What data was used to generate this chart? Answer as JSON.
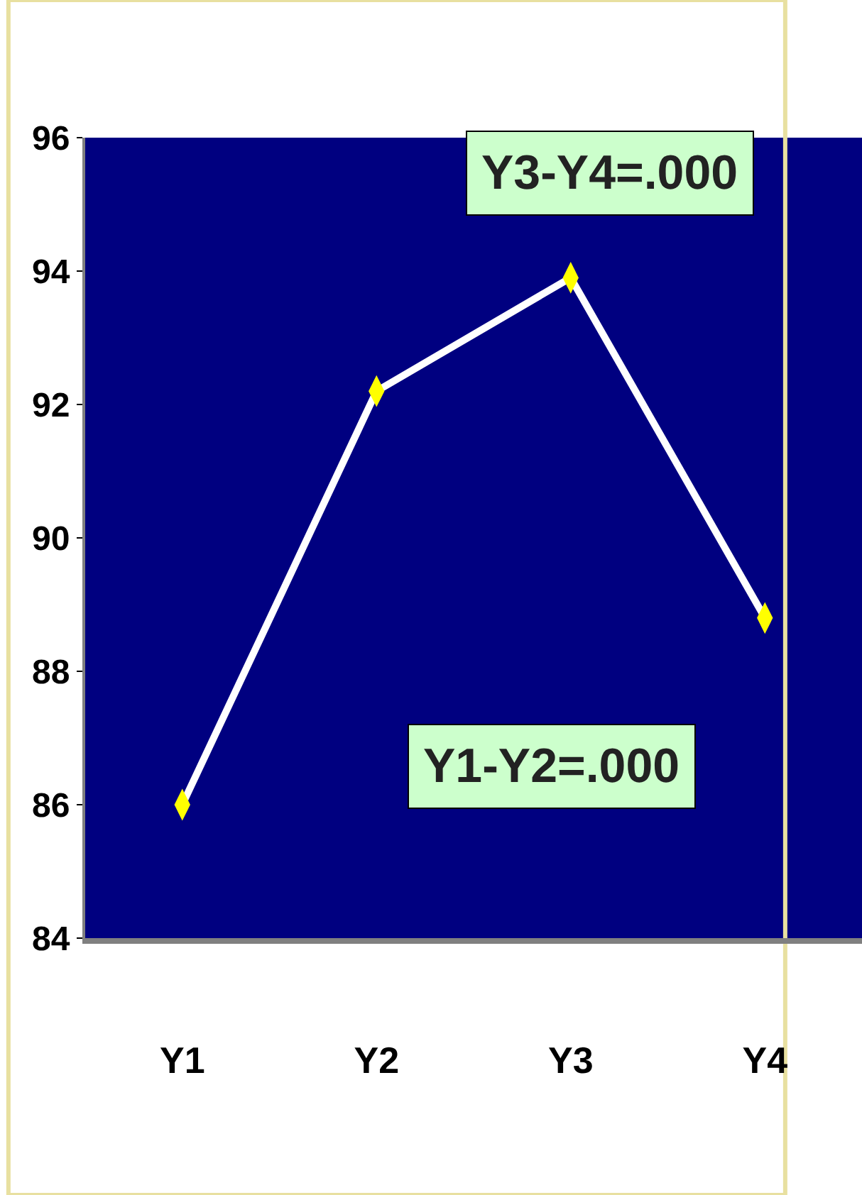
{
  "chart_data": {
    "type": "line",
    "categories": [
      "Y1",
      "Y2",
      "Y3",
      "Y4"
    ],
    "series": [
      {
        "color": "#ffffff",
        "values": [
          86.0,
          92.2,
          93.9,
          88.8
        ]
      }
    ],
    "ylim": [
      84,
      96
    ],
    "yticks": [
      84,
      86,
      88,
      90,
      92,
      94,
      96
    ],
    "marker": "diamond",
    "line_style": "solid",
    "annotations": [
      "Y3-Y4=.000",
      "Y1-Y2=.000"
    ]
  }
}
